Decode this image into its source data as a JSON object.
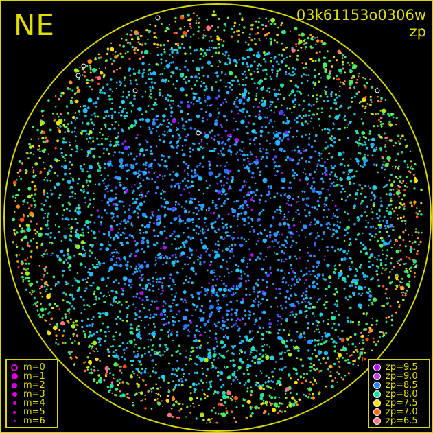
{
  "header": {
    "direction": "NE",
    "image_id": "03k61153o0306w",
    "mode": "zp"
  },
  "colors": {
    "frame": "#d8d800",
    "horizon_circle": "#d8d800",
    "text": "#e0e000",
    "background": "#000000"
  },
  "legend_magnitude": {
    "items": [
      {
        "label": "m=0",
        "symbol": "open-circle"
      },
      {
        "label": "m=1",
        "symbol": "dot"
      },
      {
        "label": "m=2",
        "symbol": "dot"
      },
      {
        "label": "m=3",
        "symbol": "dot"
      },
      {
        "label": "m=4",
        "symbol": "dot"
      },
      {
        "label": "m=5",
        "symbol": "dot"
      },
      {
        "label": "m=6",
        "symbol": "dot"
      }
    ],
    "color": "#e000e0"
  },
  "legend_zp": {
    "items": [
      {
        "label": "zp=9.5",
        "color": "#b010f0"
      },
      {
        "label": "zp=9.0",
        "color": "#c040e0"
      },
      {
        "label": "zp=8.5",
        "color": "#2a80ff"
      },
      {
        "label": "zp=8.0",
        "color": "#20e0a0"
      },
      {
        "label": "zp=7.5",
        "color": "#ffe000"
      },
      {
        "label": "zp=7.0",
        "color": "#ff6a10"
      },
      {
        "label": "zp=6.5",
        "color": "#ff7080"
      }
    ]
  }
}
